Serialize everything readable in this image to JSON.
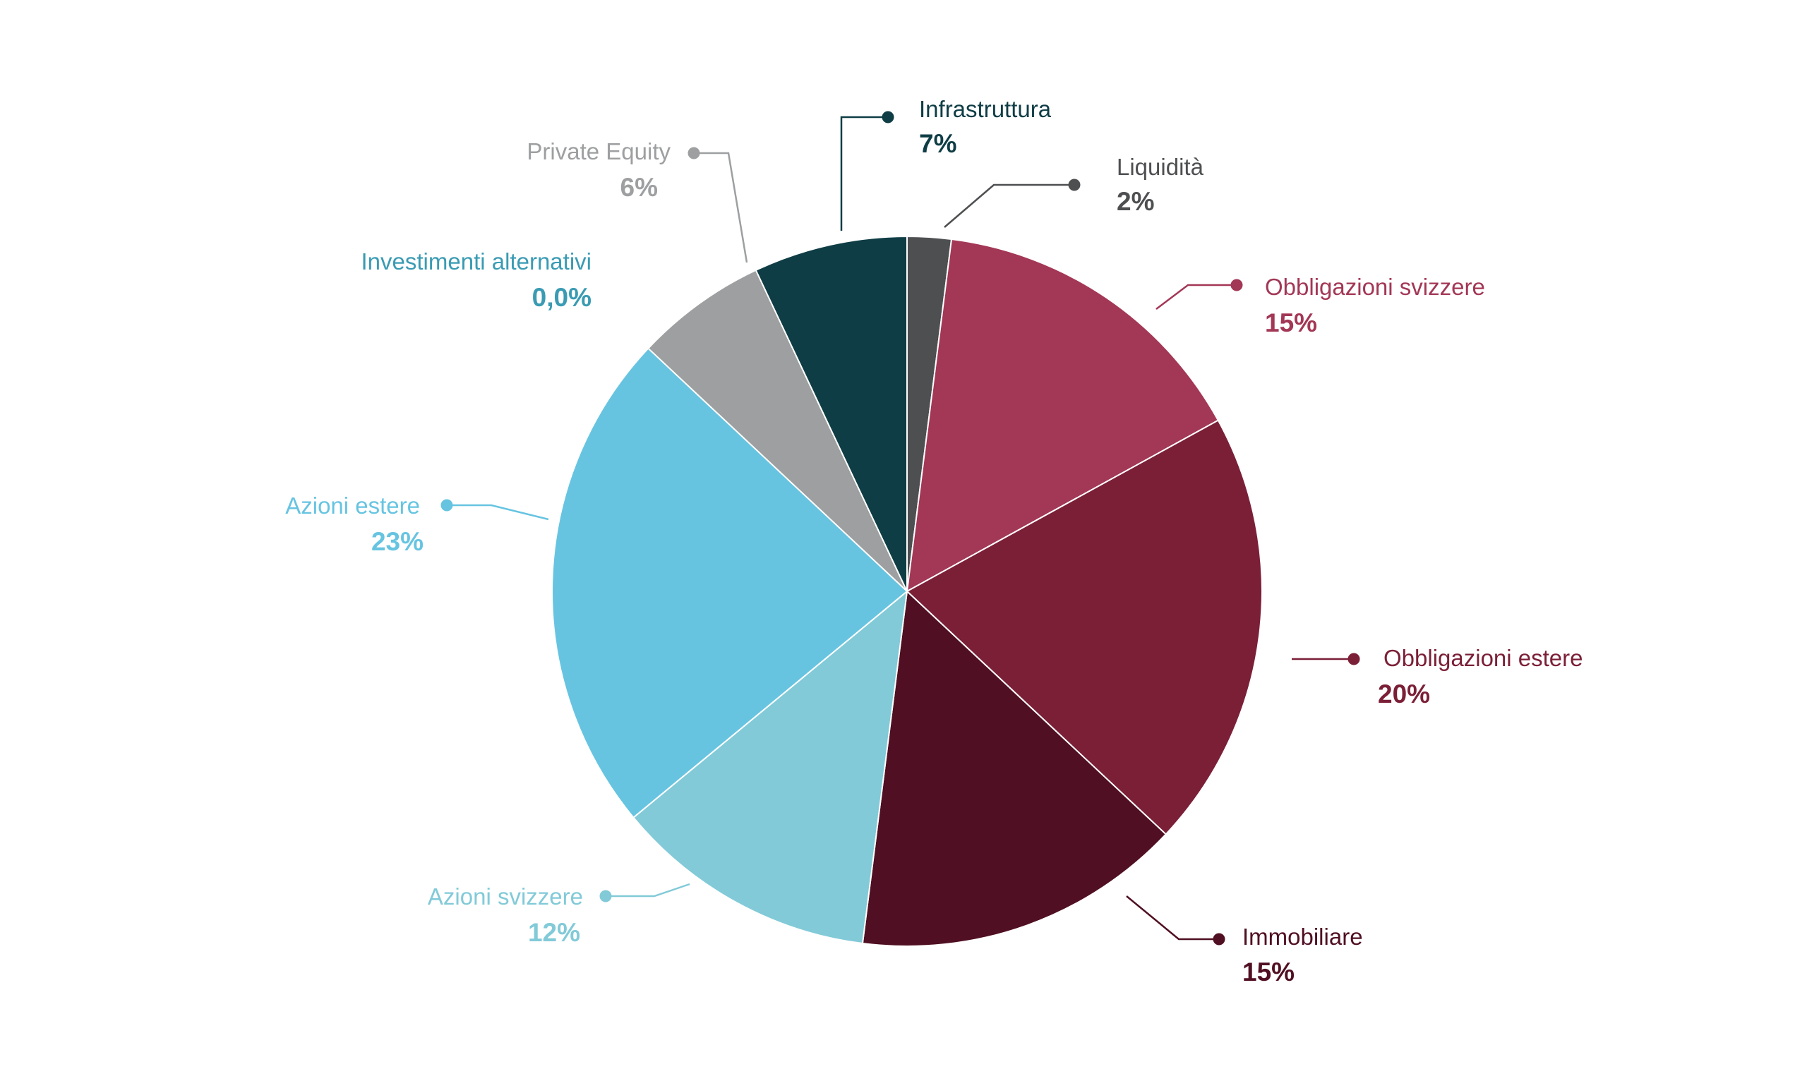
{
  "chart_data": {
    "type": "pie",
    "direction": "clockwise",
    "start": "12 o'clock",
    "slices": [
      {
        "name": "Liquidità",
        "value": 2,
        "label": "2%",
        "color": "#4e4f51"
      },
      {
        "name": "Obbligazioni svizzere",
        "value": 15,
        "label": "15%",
        "color": "#a33756"
      },
      {
        "name": "Obbligazioni estere",
        "value": 20,
        "label": "20%",
        "color": "#7b1f37"
      },
      {
        "name": "Immobiliare",
        "value": 15,
        "label": "15%",
        "color": "#500f22"
      },
      {
        "name": "Azioni svizzere",
        "value": 12,
        "label": "12%",
        "color": "#82cad8"
      },
      {
        "name": "Azioni estere",
        "value": 23,
        "label": "23%",
        "color": "#67c4e1"
      },
      {
        "name": "Investimenti alternativi",
        "value": 0.0,
        "label": "0,0%",
        "color": "#3a9bb3"
      },
      {
        "name": "Private Equity",
        "value": 6,
        "label": "6%",
        "color": "#9d9fa0"
      },
      {
        "name": "Infrastruttura",
        "value": 7,
        "label": "7%",
        "color": "#0f3d45"
      }
    ]
  }
}
